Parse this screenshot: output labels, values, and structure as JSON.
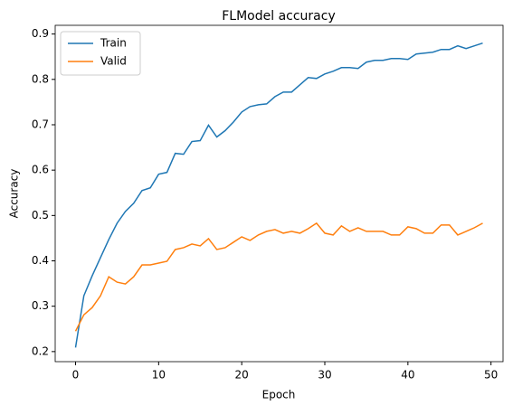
{
  "chart_data": {
    "type": "line",
    "title": "FLModel accuracy",
    "x_label": "Epoch",
    "y_label": "Accuracy",
    "x": [
      0,
      1,
      2,
      3,
      4,
      5,
      6,
      7,
      8,
      9,
      10,
      11,
      12,
      13,
      14,
      15,
      16,
      17,
      18,
      19,
      20,
      21,
      22,
      23,
      24,
      25,
      26,
      27,
      28,
      29,
      30,
      31,
      32,
      33,
      34,
      35,
      36,
      37,
      38,
      39,
      40,
      41,
      42,
      43,
      44,
      45,
      46,
      47,
      48,
      49
    ],
    "series": [
      {
        "name": "Train",
        "color": "#1f77b4",
        "values": [
          0.209,
          0.323,
          0.367,
          0.407,
          0.447,
          0.483,
          0.509,
          0.527,
          0.555,
          0.561,
          0.591,
          0.595,
          0.637,
          0.635,
          0.663,
          0.665,
          0.699,
          0.673,
          0.687,
          0.706,
          0.728,
          0.74,
          0.744,
          0.746,
          0.762,
          0.772,
          0.772,
          0.788,
          0.804,
          0.802,
          0.812,
          0.818,
          0.826,
          0.826,
          0.824,
          0.838,
          0.842,
          0.842,
          0.846,
          0.846,
          0.844,
          0.856,
          0.858,
          0.86,
          0.866,
          0.866,
          0.874,
          0.868,
          0.874,
          0.88
        ]
      },
      {
        "name": "Valid",
        "color": "#ff7f0e",
        "values": [
          0.245,
          0.281,
          0.297,
          0.323,
          0.365,
          0.353,
          0.349,
          0.365,
          0.391,
          0.391,
          0.395,
          0.399,
          0.425,
          0.429,
          0.437,
          0.433,
          0.449,
          0.425,
          0.429,
          0.441,
          0.453,
          0.445,
          0.457,
          0.465,
          0.469,
          0.461,
          0.465,
          0.461,
          0.471,
          0.483,
          0.461,
          0.457,
          0.477,
          0.465,
          0.473,
          0.465,
          0.465,
          0.465,
          0.457,
          0.457,
          0.475,
          0.471,
          0.461,
          0.461,
          0.479,
          0.479,
          0.457,
          0.465,
          0.473,
          0.483
        ]
      }
    ],
    "xlim": [
      -2.45,
      51.45
    ],
    "ylim": [
      0.1778,
      0.9192
    ],
    "xticks": [
      0,
      10,
      20,
      30,
      40,
      50
    ],
    "yticks": [
      0.2,
      0.3,
      0.4,
      0.5,
      0.6,
      0.7,
      0.8,
      0.9
    ],
    "legend": "upper left"
  }
}
